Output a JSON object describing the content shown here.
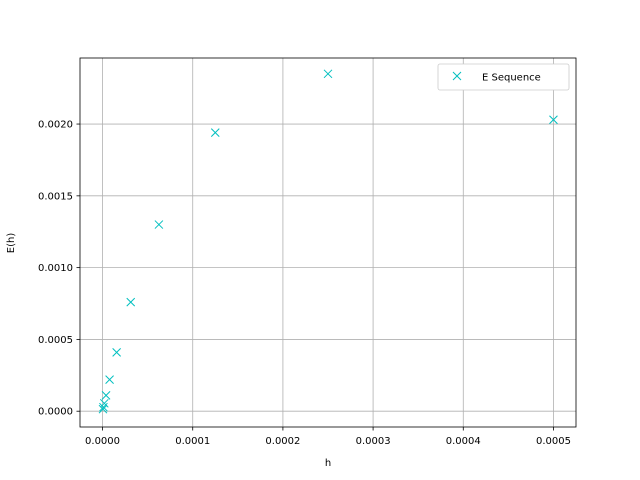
{
  "chart_data": {
    "type": "scatter",
    "xlabel": "h",
    "ylabel": "E(h)",
    "xlim": [
      -2.5e-05,
      0.000525
    ],
    "ylim": [
      -0.00011,
      0.00246
    ],
    "xticks": [
      0.0,
      0.0001,
      0.0002,
      0.0003,
      0.0004,
      0.0005
    ],
    "xtick_labels": [
      "0.0000",
      "0.0001",
      "0.0002",
      "0.0003",
      "0.0004",
      "0.0005"
    ],
    "yticks": [
      0.0,
      0.0005,
      0.001,
      0.0015,
      0.002
    ],
    "ytick_labels": [
      "0.0000",
      "0.0005",
      "0.0010",
      "0.0015",
      "0.0020"
    ],
    "grid": true,
    "legend_position": "top-right",
    "series": [
      {
        "name": "E Sequence",
        "marker": "x",
        "color": "#00bfbf",
        "x": [
          0.0005,
          0.00025,
          0.000125,
          6.25e-05,
          3.125e-05,
          1.5625e-05,
          7.8125e-06,
          3.90625e-06,
          1.953125e-06,
          9.765625e-07,
          4.8828125e-07
        ],
        "y": [
          0.00203,
          0.00235,
          0.00194,
          0.0013,
          0.00076,
          0.00041,
          0.00022,
          0.00011,
          5.5e-05,
          2.8e-05,
          1.4e-05
        ]
      }
    ]
  }
}
